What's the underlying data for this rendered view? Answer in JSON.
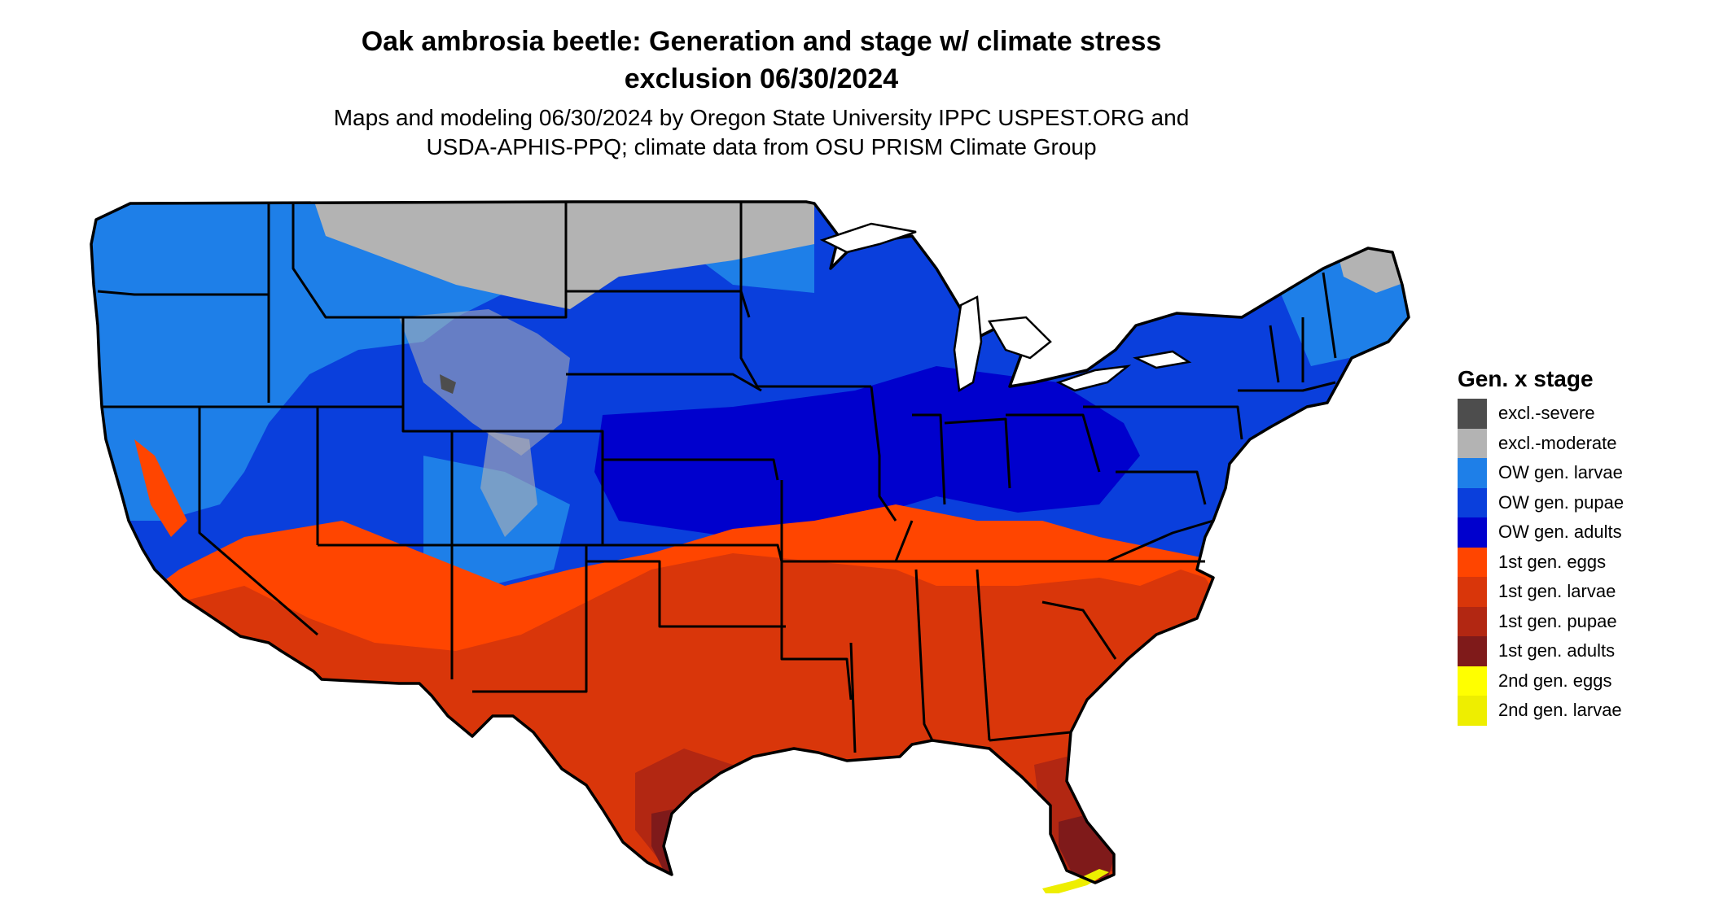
{
  "title_line1": "Oak ambrosia beetle: Generation and stage w/ climate stress",
  "title_line2": "exclusion 06/30/2024",
  "subtitle_line1": "Maps and modeling 06/30/2024 by Oregon State University IPPC USPEST.ORG and",
  "subtitle_line2": "USDA-APHIS-PPQ; climate data from OSU PRISM Climate Group",
  "legend": {
    "title": "Gen. x stage",
    "items": [
      {
        "label": "excl.-severe",
        "color": "#4d4d4d"
      },
      {
        "label": "excl.-moderate",
        "color": "#b3b3b3"
      },
      {
        "label": "OW gen. larvae",
        "color": "#1e7fe8"
      },
      {
        "label": "OW gen. pupae",
        "color": "#0a3fdc"
      },
      {
        "label": "OW gen. adults",
        "color": "#0000cd"
      },
      {
        "label": "1st gen. eggs",
        "color": "#ff4500"
      },
      {
        "label": "1st gen. larvae",
        "color": "#d9360a"
      },
      {
        "label": "1st gen. pupae",
        "color": "#b22712"
      },
      {
        "label": "1st gen. adults",
        "color": "#7f1a1a"
      },
      {
        "label": "2nd gen. eggs",
        "color": "#ffff00"
      },
      {
        "label": "2nd gen. larvae",
        "color": "#eeee00"
      }
    ]
  }
}
